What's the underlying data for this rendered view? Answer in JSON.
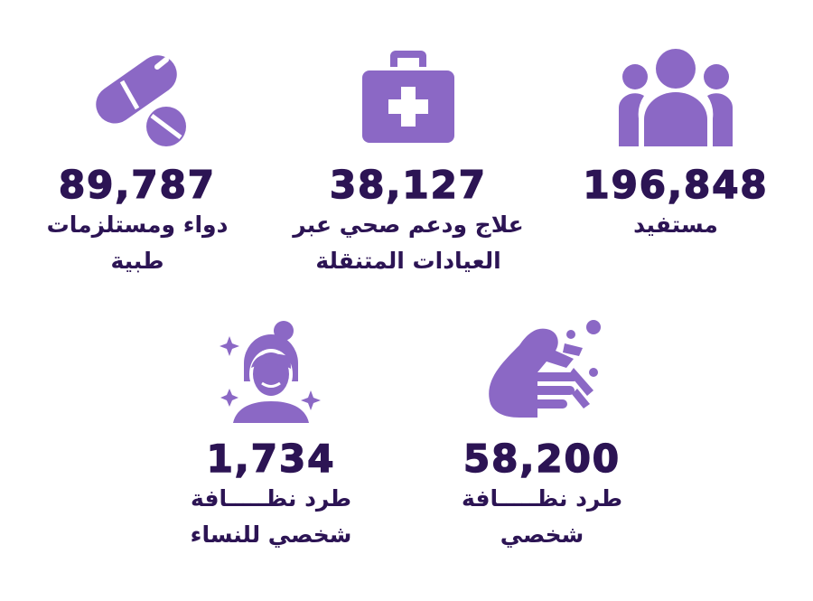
{
  "colors": {
    "icon": "#8b68c5",
    "text": "#2c1454"
  },
  "stats": [
    {
      "icon": "people-icon",
      "value": "196,848",
      "label_lines": [
        "مستفيد"
      ]
    },
    {
      "icon": "first-aid-kit-icon",
      "value": "38,127",
      "label_lines": [
        "علاج ودعم صحي عبر",
        "العيادات المتنقلة"
      ]
    },
    {
      "icon": "pills-icon",
      "value": "89,787",
      "label_lines": [
        "دواء ومستلزمات",
        "طبية"
      ]
    },
    {
      "icon": "hand-washing-icon",
      "value": "58,200",
      "label_lines": [
        "طرد نظـــــافة",
        "شخصي"
      ]
    },
    {
      "icon": "woman-face-icon",
      "value": "1,734",
      "label_lines": [
        "طرد نظـــــافة",
        "شخصي للنساء"
      ]
    }
  ]
}
